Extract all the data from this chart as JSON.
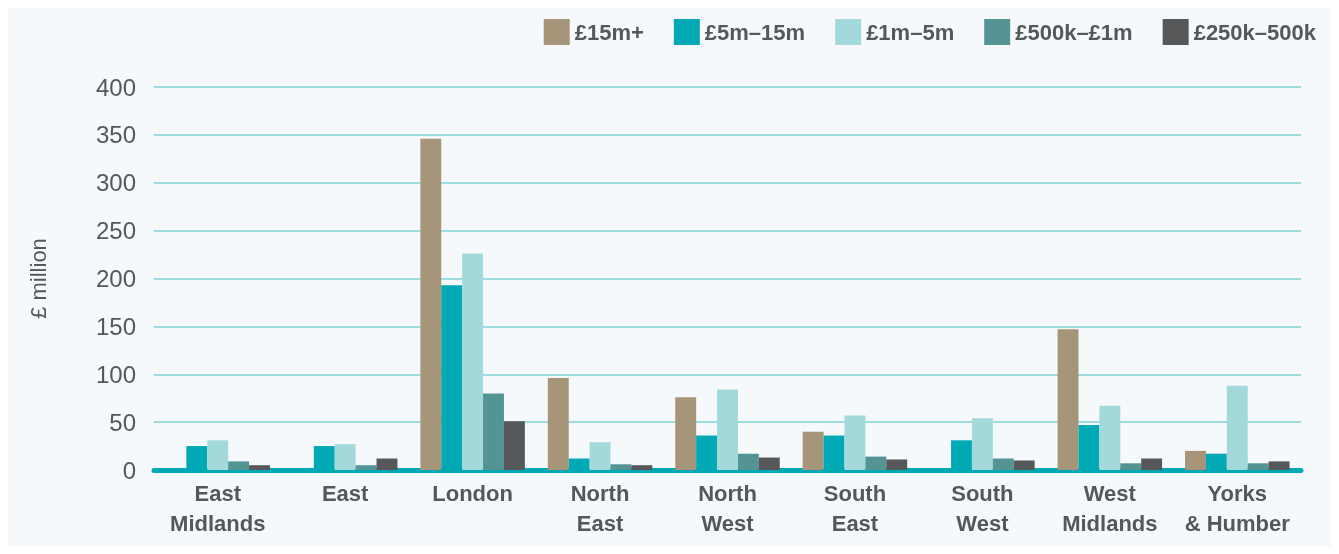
{
  "chart_data": {
    "type": "bar",
    "ylabel": "£ million",
    "categories": [
      "East Midlands",
      "East",
      "London",
      "North East",
      "North West",
      "South East",
      "South West",
      "West Midlands",
      "Yorks & Humber"
    ],
    "series": [
      {
        "name": "£15m+",
        "color": "#a69579",
        "values": [
          null,
          null,
          346,
          96,
          76,
          40,
          null,
          147,
          20
        ]
      },
      {
        "name": "£5m–15m",
        "color": "#00a9b4",
        "values": [
          25,
          25,
          193,
          12,
          36,
          36,
          31,
          47,
          17
        ]
      },
      {
        "name": "£1m–5m",
        "color": "#a3d9db",
        "values": [
          31,
          27,
          226,
          29,
          84,
          57,
          54,
          67,
          88
        ]
      },
      {
        "name": "£500k–£1m",
        "color": "#559495",
        "values": [
          9,
          5,
          80,
          6,
          17,
          14,
          12,
          7,
          7
        ]
      },
      {
        "name": "£250k–500k",
        "color": "#555759",
        "values": [
          5,
          12,
          51,
          5,
          13,
          11,
          10,
          12,
          9
        ]
      }
    ],
    "ylim": [
      0,
      400
    ],
    "yticks": [
      0,
      50,
      100,
      150,
      200,
      250,
      300,
      350,
      400
    ],
    "grid": "y",
    "legend": "top right"
  }
}
